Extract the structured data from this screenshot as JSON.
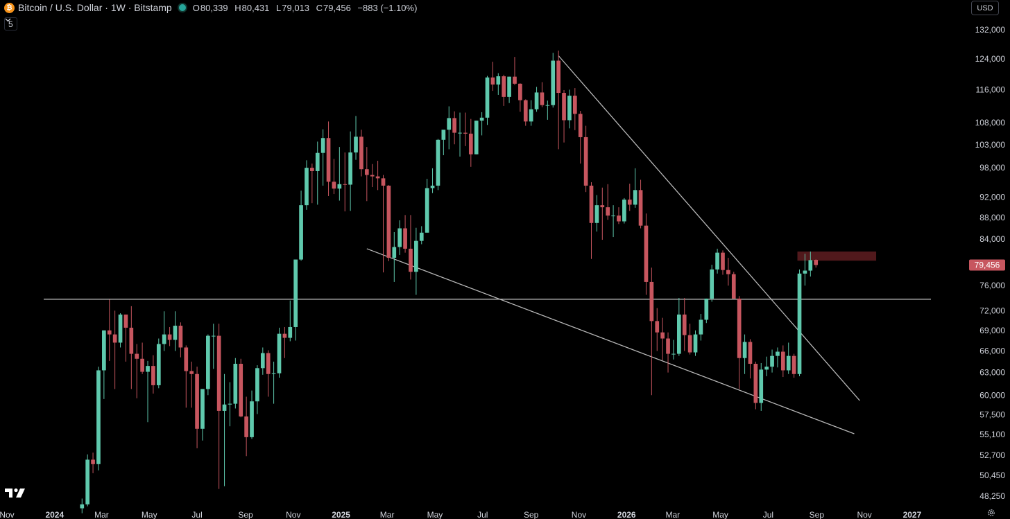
{
  "header": {
    "symbol_icon": "bitcoin-icon",
    "title": "Bitcoin / U.S. Dollar · 1W · Bitstamp",
    "ohlc": {
      "o_label": "O",
      "o": "80,339",
      "h_label": "H",
      "h": "80,431",
      "l_label": "L",
      "l": "79,013",
      "c_label": "C",
      "c": "79,456",
      "change": "−883 (−1.10%)"
    }
  },
  "indicator_toggle": {
    "icon": "chevron-down-icon",
    "count": "5"
  },
  "currency": "USD",
  "last_price_label": "79,456",
  "icons": {
    "settings": "gear-icon",
    "logo": "tradingview-logo-icon"
  },
  "colors": {
    "background": "#000000",
    "up": "#5fc9ad",
    "down": "#c7565f",
    "line": "#b8b8b8",
    "axis_text": "#d1d4dc",
    "price_label_bg": "#c7565f",
    "resistance_zone": "#5a1c1f"
  },
  "chart_data": {
    "type": "candlestick",
    "title": "",
    "xlabel": "",
    "ylabel": "",
    "y_scale": "log",
    "ylim": [
      47500,
      134000
    ],
    "y_ticks": [
      "132,000",
      "124,000",
      "116,000",
      "108,000",
      "103,000",
      "98,000",
      "92,000",
      "88,000",
      "84,000",
      "76,000",
      "72,000",
      "69,000",
      "66,000",
      "63,000",
      "60,000",
      "57,500",
      "55,100",
      "52,700",
      "50,450",
      "48,250"
    ],
    "x_ticks": [
      "Nov",
      "2024",
      "Mar",
      "May",
      "Jul",
      "Sep",
      "Nov",
      "2025",
      "Mar",
      "May",
      "Jul",
      "Sep",
      "Nov",
      "2026",
      "Mar",
      "May",
      "Jul",
      "Sep",
      "Nov",
      "2027"
    ],
    "x_range": [
      "2023-11-01",
      "2027-01-25"
    ],
    "legend": "none",
    "grid": false,
    "candles": [
      [
        "2024-02-05",
        47000,
        48000,
        46500,
        47400
      ],
      [
        "2024-02-12",
        47400,
        52800,
        47200,
        52200
      ],
      [
        "2024-02-19",
        52200,
        53000,
        50700,
        51700
      ],
      [
        "2024-02-26",
        51700,
        63800,
        51000,
        63300
      ],
      [
        "2024-03-04",
        63300,
        69000,
        59500,
        69000
      ],
      [
        "2024-03-11",
        69000,
        73750,
        64600,
        68400
      ],
      [
        "2024-03-18",
        68400,
        72000,
        60800,
        67200
      ],
      [
        "2024-03-25",
        67200,
        71600,
        66500,
        71400
      ],
      [
        "2024-04-01",
        71400,
        71400,
        64500,
        69400
      ],
      [
        "2024-04-08",
        69400,
        72700,
        60800,
        65600
      ],
      [
        "2024-04-15",
        65600,
        67000,
        59600,
        64900
      ],
      [
        "2024-04-22",
        64900,
        67200,
        62800,
        63100
      ],
      [
        "2024-04-29",
        63100,
        64600,
        56600,
        63900
      ],
      [
        "2024-05-06",
        63900,
        65400,
        60200,
        61300
      ],
      [
        "2024-05-13",
        61300,
        67800,
        60900,
        67000
      ],
      [
        "2024-05-20",
        67000,
        71900,
        66000,
        68400
      ],
      [
        "2024-05-27",
        68400,
        69500,
        66700,
        67600
      ],
      [
        "2024-06-03",
        67600,
        71900,
        66000,
        69700
      ],
      [
        "2024-06-10",
        69700,
        70200,
        65100,
        66500
      ],
      [
        "2024-06-17",
        66500,
        66800,
        58400,
        63200
      ],
      [
        "2024-06-24",
        63200,
        64500,
        58400,
        62800
      ],
      [
        "2024-07-01",
        62800,
        63800,
        53500,
        55800
      ],
      [
        "2024-07-08",
        55800,
        60800,
        54400,
        60800
      ],
      [
        "2024-07-15",
        60800,
        68400,
        60000,
        68200
      ],
      [
        "2024-07-22",
        68200,
        70000,
        63500,
        68200
      ],
      [
        "2024-07-29",
        68200,
        70000,
        49000,
        58000
      ],
      [
        "2024-08-05",
        58000,
        62800,
        49300,
        58800
      ],
      [
        "2024-08-12",
        58800,
        61700,
        56100,
        58900
      ],
      [
        "2024-08-19",
        58900,
        65000,
        58300,
        64200
      ],
      [
        "2024-08-26",
        64200,
        64900,
        57200,
        57300
      ],
      [
        "2024-09-02",
        57300,
        59800,
        52600,
        54800
      ],
      [
        "2024-09-09",
        54800,
        60600,
        54600,
        59200
      ],
      [
        "2024-09-16",
        59200,
        64000,
        57600,
        63600
      ],
      [
        "2024-09-23",
        63600,
        66500,
        62700,
        65700
      ],
      [
        "2024-09-30",
        65700,
        66100,
        59800,
        62800
      ],
      [
        "2024-10-07",
        62800,
        64500,
        58900,
        62900
      ],
      [
        "2024-10-14",
        62900,
        69400,
        62300,
        68500
      ],
      [
        "2024-10-21",
        68500,
        69500,
        65000,
        67900
      ],
      [
        "2024-10-28",
        67900,
        73600,
        67400,
        69500
      ],
      [
        "2024-11-04",
        69500,
        80400,
        67500,
        80400
      ],
      [
        "2024-11-11",
        80400,
        93300,
        80200,
        90400
      ],
      [
        "2024-11-18",
        90400,
        99600,
        89500,
        98000
      ],
      [
        "2024-11-25",
        98000,
        98900,
        90800,
        97300
      ],
      [
        "2024-12-02",
        97300,
        103700,
        90500,
        101200
      ],
      [
        "2024-12-09",
        101200,
        106500,
        94300,
        104500
      ],
      [
        "2024-12-16",
        104500,
        108300,
        92200,
        95100
      ],
      [
        "2024-12-23",
        95100,
        99900,
        92600,
        93700
      ],
      [
        "2024-12-30",
        93700,
        102500,
        91300,
        94600
      ],
      [
        "2025-01-06",
        94600,
        101300,
        89200,
        94500
      ],
      [
        "2025-01-13",
        94500,
        106000,
        89300,
        101300
      ],
      [
        "2025-01-20",
        101300,
        109600,
        99700,
        104800
      ],
      [
        "2025-01-27",
        104800,
        106400,
        96200,
        97700
      ],
      [
        "2025-02-03",
        97700,
        102500,
        91200,
        96500
      ],
      [
        "2025-02-10",
        96500,
        98800,
        94000,
        96200
      ],
      [
        "2025-02-17",
        96200,
        99500,
        93400,
        95800
      ],
      [
        "2025-02-24",
        95800,
        96500,
        78200,
        94300
      ],
      [
        "2025-03-03",
        94300,
        94400,
        80100,
        80700
      ],
      [
        "2025-03-10",
        80700,
        85300,
        76600,
        82600
      ],
      [
        "2025-03-17",
        82600,
        87500,
        81200,
        86000
      ],
      [
        "2025-03-24",
        86000,
        88500,
        81600,
        82300
      ],
      [
        "2025-03-31",
        82300,
        88500,
        77000,
        78300
      ],
      [
        "2025-04-07",
        78300,
        86100,
        74500,
        83700
      ],
      [
        "2025-04-14",
        83700,
        86400,
        83100,
        85200
      ],
      [
        "2025-04-21",
        85200,
        95700,
        85200,
        93800
      ],
      [
        "2025-04-28",
        93800,
        97900,
        92800,
        94300
      ],
      [
        "2025-05-05",
        94300,
        104300,
        93400,
        104100
      ],
      [
        "2025-05-12",
        104100,
        105800,
        100700,
        106400
      ],
      [
        "2025-05-19",
        106400,
        111900,
        102000,
        109100
      ],
      [
        "2025-05-26",
        109100,
        110700,
        103100,
        105700
      ],
      [
        "2025-06-02",
        105700,
        110400,
        100400,
        105700
      ],
      [
        "2025-06-09",
        105700,
        110400,
        102700,
        105500
      ],
      [
        "2025-06-16",
        105500,
        108900,
        98200,
        100900
      ],
      [
        "2025-06-23",
        100900,
        108500,
        100900,
        108500
      ],
      [
        "2025-06-30",
        108500,
        110500,
        105100,
        109200
      ],
      [
        "2025-07-07",
        109200,
        119500,
        107500,
        119100
      ],
      [
        "2025-07-14",
        119100,
        123200,
        115700,
        117300
      ],
      [
        "2025-07-21",
        117300,
        120200,
        114700,
        119400
      ],
      [
        "2025-07-28",
        119400,
        119800,
        112000,
        114200
      ],
      [
        "2025-08-04",
        114200,
        119300,
        112700,
        119300
      ],
      [
        "2025-08-11",
        119300,
        124500,
        117200,
        117500
      ],
      [
        "2025-08-18",
        117500,
        117600,
        110600,
        113400
      ],
      [
        "2025-08-25",
        113400,
        113600,
        107300,
        108300
      ],
      [
        "2025-09-01",
        108300,
        113400,
        107300,
        111200
      ],
      [
        "2025-09-08",
        111200,
        116700,
        110600,
        115300
      ],
      [
        "2025-09-15",
        115300,
        117900,
        111700,
        112200
      ],
      [
        "2025-09-22",
        112200,
        113300,
        108700,
        112200
      ],
      [
        "2025-09-29",
        112200,
        125600,
        111600,
        123500
      ],
      [
        "2025-10-06",
        123500,
        126200,
        102000,
        115200
      ],
      [
        "2025-10-13",
        115200,
        115900,
        103500,
        108600
      ],
      [
        "2025-10-20",
        108600,
        116000,
        106700,
        114500
      ],
      [
        "2025-10-27",
        114500,
        116400,
        106300,
        110100
      ],
      [
        "2025-11-03",
        110100,
        110800,
        98900,
        104700
      ],
      [
        "2025-11-10",
        104700,
        107300,
        93000,
        94300
      ],
      [
        "2025-11-17",
        94300,
        95000,
        80500,
        87000
      ],
      [
        "2025-11-24",
        87000,
        92400,
        85400,
        90400
      ],
      [
        "2025-12-01",
        90400,
        93900,
        83900,
        90000
      ],
      [
        "2025-12-08",
        90000,
        94600,
        87600,
        88400
      ],
      [
        "2025-12-15",
        88400,
        90400,
        84400,
        88400
      ],
      [
        "2025-12-22",
        88400,
        90000,
        86800,
        87300
      ],
      [
        "2025-12-29",
        87300,
        91800,
        86900,
        91500
      ],
      [
        "2026-01-05",
        91500,
        94700,
        89300,
        90500
      ],
      [
        "2026-01-12",
        90500,
        97900,
        89900,
        93400
      ],
      [
        "2026-01-19",
        93400,
        95500,
        86000,
        86500
      ],
      [
        "2026-01-26",
        86500,
        88800,
        74500,
        76600
      ],
      [
        "2026-02-02",
        76600,
        79000,
        60000,
        70400
      ],
      [
        "2026-02-09",
        70400,
        72400,
        66000,
        68700
      ],
      [
        "2026-02-16",
        68700,
        70900,
        64700,
        67800
      ],
      [
        "2026-02-23",
        67800,
        68700,
        63000,
        65600
      ],
      [
        "2026-03-02",
        65600,
        67600,
        64800,
        65600
      ],
      [
        "2026-03-09",
        65600,
        74000,
        65300,
        71400
      ],
      [
        "2026-03-16",
        71400,
        74000,
        66000,
        68300
      ],
      [
        "2026-03-23",
        68300,
        70000,
        65500,
        65800
      ],
      [
        "2026-03-30",
        65800,
        69000,
        65300,
        68400
      ],
      [
        "2026-04-06",
        68400,
        71500,
        67500,
        70600
      ],
      [
        "2026-04-13",
        70600,
        73900,
        70100,
        73900
      ],
      [
        "2026-04-20",
        73900,
        79500,
        73400,
        78700
      ],
      [
        "2026-04-27",
        78700,
        82300,
        78000,
        81600
      ],
      [
        "2026-05-04",
        81600,
        82000,
        77800,
        78600
      ],
      [
        "2026-05-11",
        78600,
        80700,
        76000,
        77900
      ],
      [
        "2026-05-18",
        77900,
        78300,
        74200,
        73900
      ],
      [
        "2026-05-25",
        73900,
        74300,
        60800,
        65000
      ],
      [
        "2026-06-01",
        65000,
        68400,
        62800,
        67300
      ],
      [
        "2026-06-08",
        67300,
        67700,
        62200,
        64200
      ],
      [
        "2026-06-15",
        64200,
        64500,
        58200,
        59000
      ],
      [
        "2026-06-22",
        59000,
        64300,
        58000,
        63400
      ],
      [
        "2026-06-29",
        63400,
        65200,
        62500,
        63800
      ],
      [
        "2026-07-06",
        63800,
        66200,
        63000,
        65300
      ],
      [
        "2026-07-13",
        65300,
        66500,
        63700,
        65900
      ],
      [
        "2026-07-20",
        65900,
        66800,
        62400,
        63300
      ],
      [
        "2026-07-27",
        63300,
        67200,
        62800,
        65300
      ],
      [
        "2026-08-03",
        65300,
        65600,
        62300,
        62800
      ],
      [
        "2026-08-10",
        62800,
        78700,
        62500,
        78000
      ],
      [
        "2026-08-17",
        78000,
        81400,
        76000,
        78500
      ],
      [
        "2026-08-24",
        78500,
        81800,
        77500,
        80300
      ],
      [
        "2026-08-31",
        80339,
        80431,
        79013,
        79456
      ]
    ],
    "lines": [
      {
        "name": "",
        "from": [
          "2025-10-06",
          124800
        ],
        "to": [
          "2026-10-26",
          59300
        ]
      },
      {
        "name": "",
        "from": [
          "2025-02-03",
          82300
        ],
        "to": [
          "2026-10-19",
          55200
        ]
      },
      {
        "name": "",
        "from": [
          "2023-12-18",
          73800
        ],
        "to": [
          "2027-01-25",
          73800
        ]
      }
    ],
    "zone": {
      "from": "2026-08-10",
      "to": "2026-11-16",
      "low": 80200,
      "high": 81800
    }
  }
}
